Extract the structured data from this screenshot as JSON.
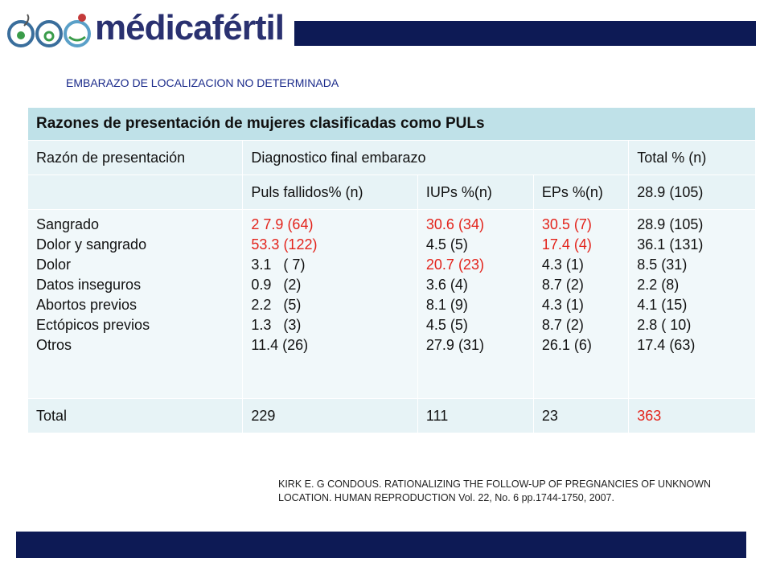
{
  "header": {
    "logo": "médicafértil",
    "bar_color": "#0d1a55"
  },
  "subtitle": "EMBARAZO DE LOCALIZACION NO DETERMINADA",
  "table": {
    "title": "Razones de presentación de mujeres clasificadas como PULs",
    "header": [
      "Razón de presentación",
      "Diagnostico final embarazo",
      "Total % (n)"
    ],
    "subheader": [
      "Puls fallidos% (n)",
      "IUPs %(n)",
      "EPs %(n)",
      "28.9 (105)"
    ],
    "body": [
      [
        "Sangrado",
        "Dolor y sangrado",
        "Dolor",
        "Datos inseguros",
        "Abortos previos",
        "Ectópicos previos",
        "Otros"
      ],
      [
        "2 7.9 (64)",
        "53.3 (122)",
        "3.1   ( 7)",
        "0.9   (2)",
        "2.2   (5)",
        "1.3   (3)",
        "11.4 (26)"
      ],
      [
        "30.6 (34)",
        "4.5 (5)",
        "20.7 (23)",
        "3.6 (4)",
        "8.1 (9)",
        "4.5 (5)",
        "27.9 (31)"
      ],
      [
        "30.5 (7)",
        "17.4 (4)",
        "4.3 (1)",
        "8.7 (2)",
        "4.3 (1)",
        "8.7 (2)",
        "26.1 (6)"
      ],
      [
        "28.9 (105)",
        "36.1 (131)",
        "8.5 (31)",
        "2.2 (8)",
        "4.1 (15)",
        "2.8 ( 10)",
        "17.4 (63)"
      ]
    ],
    "total": [
      "Total",
      "229",
      "111",
      "23",
      "363"
    ],
    "emphasis": {
      "color": "#e3231b",
      "body": [
        [
          1,
          0
        ],
        [
          1,
          1
        ],
        [
          2,
          0
        ],
        [
          2,
          2
        ],
        [
          3,
          0
        ],
        [
          3,
          1
        ]
      ],
      "total": [
        4
      ]
    }
  },
  "citation": "KIRK E. G CONDOUS. RATIONALIZING THE FOLLOW-UP OF PREGNANCIES OF UNKNOWN LOCATION. HUMAN REPRODUCTION Vol. 22, No. 6 pp.1744-1750, 2007."
}
